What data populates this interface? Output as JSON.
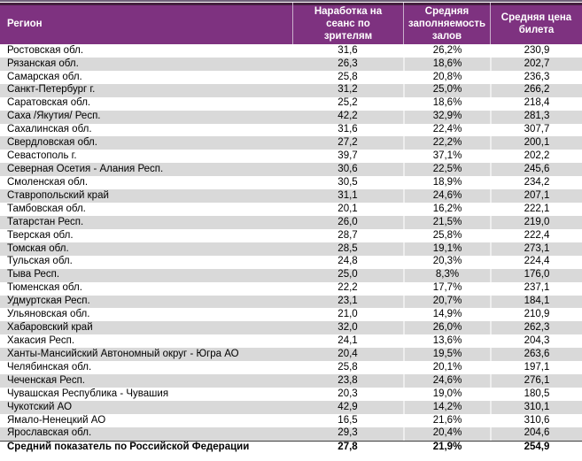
{
  "table": {
    "columns": [
      "Регион",
      "Наработка на сеанс по зрителям",
      "Средняя заполняемость залов",
      "Средняя цена билета"
    ],
    "rows": [
      {
        "region": "Ростовская обл.",
        "per_session": "31,6",
        "occupancy": "26,2%",
        "price": "230,9"
      },
      {
        "region": "Рязанская обл.",
        "per_session": "26,3",
        "occupancy": "18,6%",
        "price": "202,7"
      },
      {
        "region": "Самарская обл.",
        "per_session": "25,8",
        "occupancy": "20,8%",
        "price": "236,3"
      },
      {
        "region": "Санкт-Петербург г.",
        "per_session": "31,2",
        "occupancy": "25,0%",
        "price": "266,2"
      },
      {
        "region": "Саратовская обл.",
        "per_session": "25,2",
        "occupancy": "18,6%",
        "price": "218,4"
      },
      {
        "region": "Саха /Якутия/ Респ.",
        "per_session": "42,2",
        "occupancy": "32,9%",
        "price": "281,3"
      },
      {
        "region": "Сахалинская обл.",
        "per_session": "31,6",
        "occupancy": "22,4%",
        "price": "307,7"
      },
      {
        "region": "Свердловская обл.",
        "per_session": "27,2",
        "occupancy": "22,2%",
        "price": "200,1"
      },
      {
        "region": "Севастополь г.",
        "per_session": "39,7",
        "occupancy": "37,1%",
        "price": "202,2"
      },
      {
        "region": "Северная Осетия - Алания Респ.",
        "per_session": "30,6",
        "occupancy": "22,5%",
        "price": "245,6"
      },
      {
        "region": "Смоленская обл.",
        "per_session": "30,5",
        "occupancy": "18,9%",
        "price": "234,2"
      },
      {
        "region": "Ставропольский край",
        "per_session": "31,1",
        "occupancy": "24,6%",
        "price": "207,1"
      },
      {
        "region": "Тамбовская обл.",
        "per_session": "20,1",
        "occupancy": "16,2%",
        "price": "222,1"
      },
      {
        "region": "Татарстан Респ.",
        "per_session": "26,0",
        "occupancy": "21,5%",
        "price": "219,0"
      },
      {
        "region": "Тверская обл.",
        "per_session": "28,7",
        "occupancy": "25,8%",
        "price": "222,4"
      },
      {
        "region": "Томская обл.",
        "per_session": "28,5",
        "occupancy": "19,1%",
        "price": "273,1"
      },
      {
        "region": "Тульская обл.",
        "per_session": "24,8",
        "occupancy": "20,3%",
        "price": "224,4"
      },
      {
        "region": "Тыва Респ.",
        "per_session": "25,0",
        "occupancy": "8,3%",
        "price": "176,0"
      },
      {
        "region": "Тюменская обл.",
        "per_session": "22,2",
        "occupancy": "17,7%",
        "price": "237,1"
      },
      {
        "region": "Удмуртская Респ.",
        "per_session": "23,1",
        "occupancy": "20,7%",
        "price": "184,1"
      },
      {
        "region": "Ульяновская обл.",
        "per_session": "21,0",
        "occupancy": "14,9%",
        "price": "210,9"
      },
      {
        "region": "Хабаровский край",
        "per_session": "32,0",
        "occupancy": "26,0%",
        "price": "262,3"
      },
      {
        "region": "Хакасия Респ.",
        "per_session": "24,1",
        "occupancy": "13,6%",
        "price": "204,3"
      },
      {
        "region": "Ханты-Мансийский Автономный округ - Югра АО",
        "per_session": "20,4",
        "occupancy": "19,5%",
        "price": "263,6"
      },
      {
        "region": "Челябинская обл.",
        "per_session": "25,8",
        "occupancy": "20,1%",
        "price": "197,1"
      },
      {
        "region": "Чеченская Респ.",
        "per_session": "23,8",
        "occupancy": "24,6%",
        "price": "276,1"
      },
      {
        "region": "Чувашская Республика - Чувашия",
        "per_session": "20,3",
        "occupancy": "19,0%",
        "price": "180,5"
      },
      {
        "region": "Чукотский АО",
        "per_session": "42,9",
        "occupancy": "14,2%",
        "price": "310,1"
      },
      {
        "region": "Ямало-Ненецкий АО",
        "per_session": "16,5",
        "occupancy": "21,6%",
        "price": "310,6"
      },
      {
        "region": "Ярославская обл.",
        "per_session": "29,3",
        "occupancy": "20,4%",
        "price": "204,6"
      }
    ],
    "total": {
      "region": "Средний показатель по Российской Федерации",
      "per_session": "27,8",
      "occupancy": "21,9%",
      "price": "254,9"
    }
  },
  "colors": {
    "header_bg": "#7E3280",
    "header_text": "#FFFFFF",
    "header_dark_top_border": "#44203F",
    "header_separator": "#C9AECB",
    "outer_top_line": "#6F6279",
    "alt_row_bg": "#D9D9D9",
    "total_row_top_border": "#3F3F3F",
    "body_text": "#000000"
  }
}
